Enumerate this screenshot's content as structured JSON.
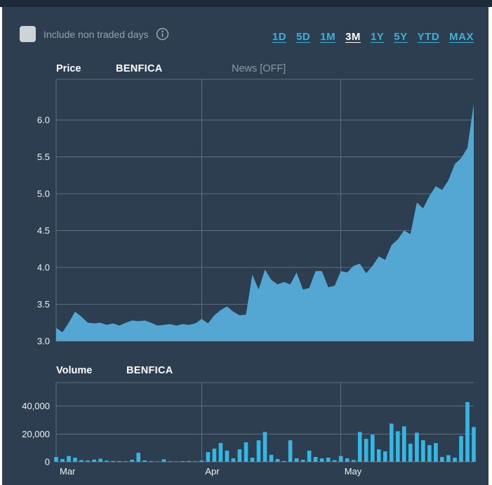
{
  "colors": {
    "background": "#2c3e50",
    "top_strip": "#1d2b39",
    "accent_link": "#3fb0d5",
    "active_link": "#ffffff",
    "area_fill": "#55a7d3",
    "bar_fill": "#35b6e3",
    "grid": "#5c7080",
    "text_primary": "#ffffff",
    "text_muted": "#95a2ae"
  },
  "topbar": {
    "checkbox_label": "Include non traded days",
    "checkbox_checked": false
  },
  "range_selector": {
    "options": [
      {
        "label": "1D",
        "active": false
      },
      {
        "label": "5D",
        "active": false
      },
      {
        "label": "1M",
        "active": false
      },
      {
        "label": "3M",
        "active": true
      },
      {
        "label": "1Y",
        "active": false
      },
      {
        "label": "5Y",
        "active": false
      },
      {
        "label": "YTD",
        "active": false
      },
      {
        "label": "MAX",
        "active": false
      }
    ]
  },
  "price_section": {
    "title": "Price",
    "symbol": "BENFICA",
    "news_toggle": "News [OFF]"
  },
  "volume_section": {
    "title": "Volume",
    "symbol": "BENFICA"
  },
  "chart_data": [
    {
      "type": "area",
      "title": "Price BENFICA",
      "ylabel": "Price",
      "xlabel": "",
      "ylim": [
        3.0,
        6.55
      ],
      "grid": true,
      "yticks": [
        {
          "value": 3.0,
          "label": "3.0"
        },
        {
          "value": 3.5,
          "label": "3.5"
        },
        {
          "value": 4.0,
          "label": "4.0"
        },
        {
          "value": 4.5,
          "label": "4.5"
        },
        {
          "value": 5.0,
          "label": "5.0"
        },
        {
          "value": 5.5,
          "label": "5.5"
        },
        {
          "value": 6.0,
          "label": "6.0"
        }
      ],
      "month_ticks": [
        {
          "label": "Mar",
          "index": 0
        },
        {
          "label": "Apr",
          "index": 23
        },
        {
          "label": "May",
          "index": 45
        }
      ],
      "values": [
        3.18,
        3.12,
        3.25,
        3.4,
        3.33,
        3.25,
        3.24,
        3.25,
        3.22,
        3.24,
        3.21,
        3.25,
        3.28,
        3.27,
        3.28,
        3.25,
        3.21,
        3.22,
        3.23,
        3.21,
        3.23,
        3.22,
        3.24,
        3.3,
        3.24,
        3.35,
        3.42,
        3.47,
        3.4,
        3.35,
        3.36,
        3.9,
        3.7,
        3.97,
        3.83,
        3.77,
        3.8,
        3.77,
        3.93,
        3.7,
        3.72,
        3.95,
        3.95,
        3.73,
        3.75,
        3.95,
        3.93,
        4.02,
        4.05,
        3.92,
        4.02,
        4.15,
        4.1,
        4.3,
        4.38,
        4.5,
        4.45,
        4.88,
        4.8,
        4.97,
        5.1,
        5.05,
        5.18,
        5.4,
        5.48,
        5.62,
        6.22
      ]
    },
    {
      "type": "bar",
      "title": "Volume BENFICA",
      "ylabel": "Volume",
      "xlabel": "",
      "ylim": [
        0,
        57000
      ],
      "grid": true,
      "yticks": [
        {
          "value": 0,
          "label": "0"
        },
        {
          "value": 20000,
          "label": "20,000"
        },
        {
          "value": 40000,
          "label": "40,000"
        }
      ],
      "month_ticks": [
        {
          "label": "Mar",
          "index": 0
        },
        {
          "label": "Apr",
          "index": 23
        },
        {
          "label": "May",
          "index": 45
        }
      ],
      "values": [
        3500,
        2000,
        4200,
        3000,
        1200,
        900,
        1600,
        2200,
        900,
        600,
        500,
        400,
        1500,
        6500,
        1000,
        500,
        300,
        1800,
        400,
        300,
        500,
        600,
        400,
        900,
        7000,
        9500,
        13500,
        8000,
        2500,
        9000,
        14000,
        3000,
        15500,
        21500,
        5000,
        2000,
        600,
        15500,
        2500,
        1500,
        8000,
        3500,
        2500,
        3000,
        1200,
        4200,
        2500,
        1300,
        21500,
        16500,
        19500,
        9000,
        7500,
        27500,
        22000,
        25500,
        13000,
        21000,
        15500,
        12000,
        13500,
        3500,
        4800,
        3000,
        18500,
        43000,
        25000
      ]
    }
  ]
}
